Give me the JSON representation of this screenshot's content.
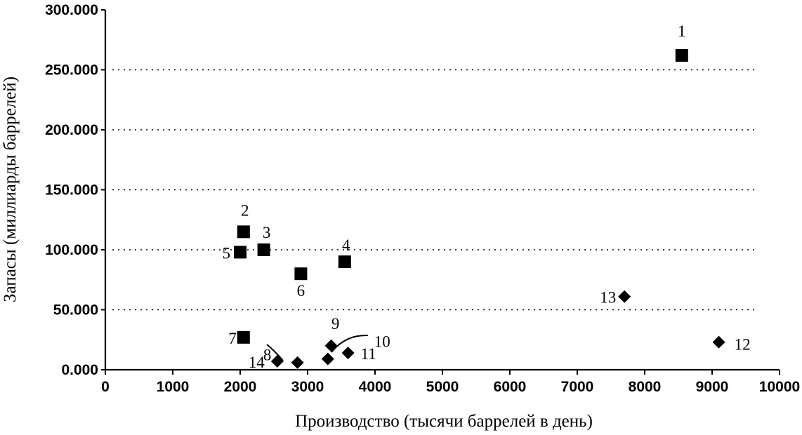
{
  "chart_data": {
    "type": "scatter",
    "xlabel": "Производство (тысячи баррелей в день)",
    "ylabel": "Запасы (миллиарды баррелей)",
    "xlim": [
      0,
      10000
    ],
    "ylim": [
      0,
      300
    ],
    "x_ticks": [
      {
        "value": 0,
        "label": "0"
      },
      {
        "value": 1000,
        "label": "1000"
      },
      {
        "value": 2000,
        "label": "2000"
      },
      {
        "value": 3000,
        "label": "3000"
      },
      {
        "value": 4000,
        "label": "4000"
      },
      {
        "value": 5000,
        "label": "5000"
      },
      {
        "value": 6000,
        "label": "6000"
      },
      {
        "value": 7000,
        "label": "7000"
      },
      {
        "value": 8000,
        "label": "8000"
      },
      {
        "value": 9000,
        "label": "9000"
      },
      {
        "value": 10000,
        "label": "10000"
      }
    ],
    "y_ticks": [
      {
        "value": 0,
        "label": "0.000"
      },
      {
        "value": 50,
        "label": "50.000"
      },
      {
        "value": 100,
        "label": "100.000"
      },
      {
        "value": 150,
        "label": "150.000"
      },
      {
        "value": 200,
        "label": "200.000"
      },
      {
        "value": 250,
        "label": "250.000"
      },
      {
        "value": 300,
        "label": "300.000"
      }
    ],
    "grid": "horizontal dotted",
    "points": [
      {
        "label": "1",
        "x": 8550,
        "y": 262,
        "marker": "square"
      },
      {
        "label": "2",
        "x": 2050,
        "y": 115,
        "marker": "square"
      },
      {
        "label": "3",
        "x": 2350,
        "y": 100,
        "marker": "square"
      },
      {
        "label": "4",
        "x": 3550,
        "y": 90,
        "marker": "square"
      },
      {
        "label": "5",
        "x": 2000,
        "y": 98,
        "marker": "square"
      },
      {
        "label": "6",
        "x": 2900,
        "y": 80,
        "marker": "square"
      },
      {
        "label": "7",
        "x": 2050,
        "y": 27,
        "marker": "square"
      },
      {
        "label": "8",
        "x": 2850,
        "y": 6,
        "marker": "diamond"
      },
      {
        "label": "9",
        "x": 3350,
        "y": 20,
        "marker": "diamond"
      },
      {
        "label": "10",
        "x": 3300,
        "y": 9,
        "marker": "diamond"
      },
      {
        "label": "11",
        "x": 3600,
        "y": 14,
        "marker": "diamond"
      },
      {
        "label": "12",
        "x": 9100,
        "y": 23,
        "marker": "diamond"
      },
      {
        "label": "13",
        "x": 7700,
        "y": 61,
        "marker": "diamond"
      },
      {
        "label": "14",
        "x": 2550,
        "y": 7,
        "marker": "diamond"
      }
    ]
  }
}
